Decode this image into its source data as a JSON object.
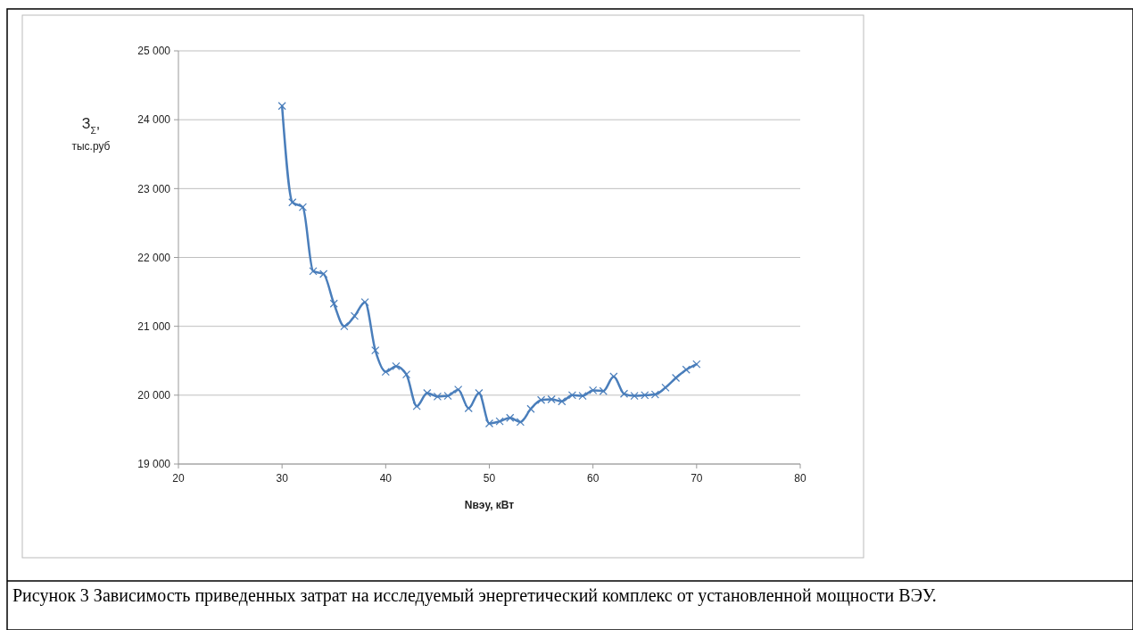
{
  "chart_data": {
    "type": "line",
    "xlabel": "Nвэу, кВт",
    "ylabel": "З$_{Σ}$, тыс.руб",
    "x": [
      30,
      31,
      32,
      33,
      34,
      35,
      36,
      37,
      38,
      39,
      40,
      41,
      42,
      43,
      44,
      45,
      46,
      47,
      48,
      49,
      50,
      51,
      52,
      53,
      54,
      55,
      56,
      57,
      58,
      59,
      60,
      61,
      62,
      63,
      64,
      65,
      66,
      67,
      68,
      69,
      70
    ],
    "series": [
      {
        "color": "#4a7ebb",
        "values": [
          24200,
          22800,
          22730,
          21800,
          21760,
          21330,
          21000,
          21150,
          21350,
          20650,
          20340,
          20420,
          20300,
          19840,
          20030,
          19980,
          19990,
          20080,
          19810,
          20030,
          19590,
          19620,
          19670,
          19610,
          19800,
          19930,
          19940,
          19910,
          20000,
          19990,
          20070,
          20060,
          20270,
          20020,
          19990,
          20000,
          20010,
          20110,
          20250,
          20370,
          20450
        ]
      }
    ],
    "xlim": [
      20,
      80
    ],
    "xticks": [
      20,
      30,
      40,
      50,
      60,
      70,
      80
    ],
    "ylim": [
      19000,
      25000
    ],
    "yticks": [
      {
        "value": 19000,
        "label": "19 000"
      },
      {
        "value": 20000,
        "label": "20 000"
      },
      {
        "value": 21000,
        "label": "21 000"
      },
      {
        "value": 22000,
        "label": "22 000"
      },
      {
        "value": 23000,
        "label": "23 000"
      },
      {
        "value": 24000,
        "label": "24 000"
      },
      {
        "value": 25000,
        "label": "25 000"
      }
    ],
    "grid": "y",
    "marker": "cross",
    "line_style": "solid",
    "annotations": [
      "Рисунок 3 Зависимость приведенных затрат на исследуемый энергетический комплекс от установленной мощности ВЭУ."
    ]
  }
}
